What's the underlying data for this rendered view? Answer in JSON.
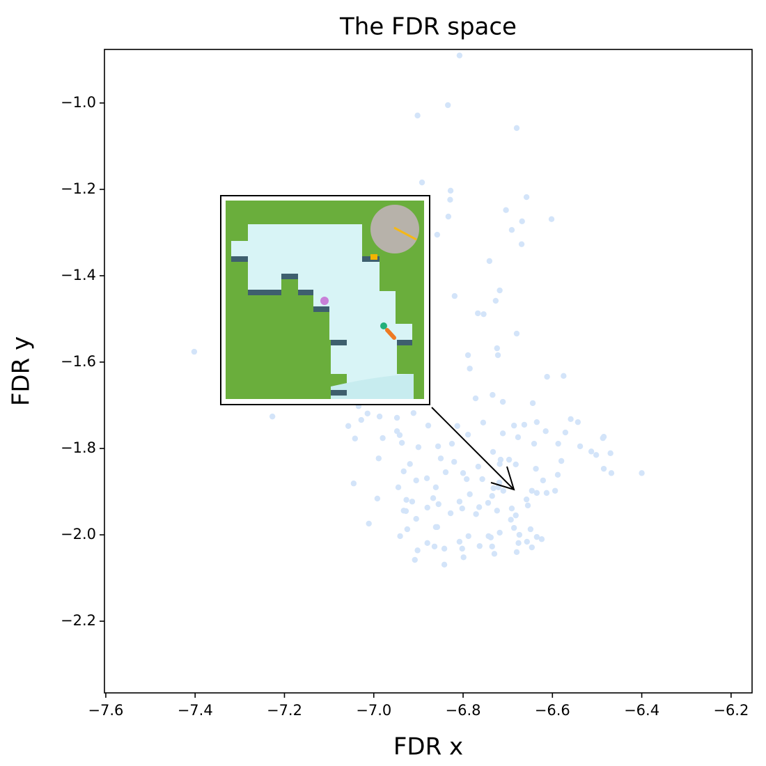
{
  "chart_data": {
    "type": "scatter",
    "title": "The FDR space",
    "xlabel": "FDR x",
    "ylabel": "FDR y",
    "color": "#d3e4f9",
    "xlim": [
      -7.603,
      -6.153
    ],
    "ylim": [
      -2.366,
      -0.876
    ],
    "xticks": [
      {
        "value": -7.6,
        "label": "−7.6"
      },
      {
        "value": -7.4,
        "label": "−7.4"
      },
      {
        "value": -7.2,
        "label": "−7.2"
      },
      {
        "value": -7.0,
        "label": "−7.0"
      },
      {
        "value": -6.8,
        "label": "−6.8"
      },
      {
        "value": -6.6,
        "label": "−6.6"
      },
      {
        "value": -6.4,
        "label": "−6.4"
      },
      {
        "value": -6.2,
        "label": "−6.2"
      }
    ],
    "yticks": [
      {
        "value": -2.2,
        "label": "−2.2"
      },
      {
        "value": -2.0,
        "label": "−2.0"
      },
      {
        "value": -1.8,
        "label": "−1.8"
      },
      {
        "value": -1.6,
        "label": "−1.6"
      },
      {
        "value": -1.4,
        "label": "−1.4"
      },
      {
        "value": -1.2,
        "label": "−1.2"
      },
      {
        "value": -1.0,
        "label": "−1.0"
      }
    ],
    "x": [
      -6.808,
      -6.834,
      -6.902,
      -6.68,
      -6.892,
      -6.828,
      -6.829,
      -6.658,
      -6.704,
      -6.602,
      -6.668,
      -6.833,
      -6.691,
      -6.858,
      -6.669,
      -6.741,
      -6.718,
      -6.727,
      -6.819,
      -6.767,
      -6.754,
      -6.68,
      -6.724,
      -6.722,
      -6.789,
      -6.785,
      -6.612,
      -6.575,
      -7.402,
      -7.227,
      -7.034,
      -6.772,
      -6.734,
      -6.644,
      -6.711,
      -6.842,
      -7.057,
      -7.028,
      -7.042,
      -7.014,
      -6.98,
      -6.948,
      -6.937,
      -6.911,
      -6.948,
      -6.9,
      -6.856,
      -6.878,
      -6.85,
      -6.825,
      -6.813,
      -6.789,
      -6.755,
      -6.733,
      -6.711,
      -6.716,
      -6.686,
      -6.677,
      -6.663,
      -6.635,
      -6.641,
      -6.615,
      -6.587,
      -6.571,
      -6.559,
      -6.543,
      -6.538,
      -6.513,
      -6.502,
      -6.487,
      -6.485,
      -6.47,
      -6.468,
      -6.4,
      -6.485,
      -6.58,
      -6.588,
      -6.621,
      -6.637,
      -6.682,
      -6.697,
      -6.718,
      -6.719,
      -6.732,
      -6.757,
      -6.766,
      -6.8,
      -6.792,
      -6.82,
      -6.839,
      -6.861,
      -6.881,
      -6.905,
      -6.933,
      -6.919,
      -6.989,
      -6.927,
      -6.928,
      -6.914,
      -6.905,
      -6.933,
      -6.925,
      -6.88,
      -6.867,
      -6.855,
      -6.858,
      -6.828,
      -6.808,
      -6.802,
      -6.785,
      -6.771,
      -6.764,
      -6.744,
      -6.735,
      -6.721,
      -6.71,
      -6.724,
      -6.691,
      -6.693,
      -6.682,
      -6.655,
      -6.646,
      -6.635,
      -6.613,
      -6.594,
      -6.658,
      -6.686,
      -6.674,
      -6.649,
      -6.635,
      -6.624,
      -6.657,
      -6.646,
      -6.676,
      -6.68,
      -6.718,
      -6.738,
      -6.743,
      -6.735,
      -6.73,
      -6.763,
      -6.788,
      -6.808,
      -6.802,
      -6.799,
      -6.842,
      -6.864,
      -6.861,
      -6.88,
      -6.941,
      -6.902,
      -6.908,
      -7.011,
      -6.992,
      -6.945,
      -6.942,
      -6.987,
      -7.045
    ],
    "values": [
      -0.89,
      -1.005,
      -1.029,
      -1.058,
      -1.184,
      -1.203,
      -1.224,
      -1.218,
      -1.248,
      -1.269,
      -1.274,
      -1.263,
      -1.294,
      -1.305,
      -1.327,
      -1.366,
      -1.434,
      -1.458,
      -1.447,
      -1.487,
      -1.489,
      -1.534,
      -1.568,
      -1.584,
      -1.584,
      -1.615,
      -1.634,
      -1.632,
      -1.576,
      -1.726,
      -1.702,
      -1.684,
      -1.676,
      -1.695,
      -1.692,
      -2.069,
      -1.748,
      -1.734,
      -1.777,
      -1.719,
      -1.776,
      -1.76,
      -1.787,
      -1.718,
      -1.729,
      -1.797,
      -1.795,
      -1.747,
      -1.823,
      -1.789,
      -1.748,
      -1.768,
      -1.74,
      -1.808,
      -1.765,
      -1.826,
      -1.747,
      -1.774,
      -1.745,
      -1.739,
      -1.789,
      -1.76,
      -1.789,
      -1.763,
      -1.732,
      -1.739,
      -1.795,
      -1.807,
      -1.815,
      -1.776,
      -1.847,
      -1.811,
      -1.857,
      -1.857,
      -1.773,
      -1.829,
      -1.861,
      -1.874,
      -1.847,
      -1.837,
      -1.826,
      -1.836,
      -1.879,
      -1.892,
      -1.871,
      -1.842,
      -1.857,
      -1.871,
      -1.831,
      -1.855,
      -1.89,
      -1.869,
      -1.874,
      -1.853,
      -1.836,
      -1.823,
      -1.919,
      -1.945,
      -1.923,
      -1.963,
      -1.944,
      -1.987,
      -1.937,
      -1.915,
      -1.929,
      -1.982,
      -1.95,
      -1.923,
      -1.939,
      -1.906,
      -1.952,
      -1.936,
      -1.926,
      -1.91,
      -1.89,
      -1.898,
      -1.944,
      -1.939,
      -1.965,
      -1.955,
      -1.932,
      -1.898,
      -1.903,
      -1.903,
      -1.898,
      -1.918,
      -1.984,
      -2.0,
      -1.987,
      -2.005,
      -2.01,
      -2.016,
      -2.029,
      -2.019,
      -2.04,
      -1.995,
      -2.006,
      -2.003,
      -2.027,
      -2.044,
      -2.026,
      -2.003,
      -2.016,
      -2.032,
      -2.052,
      -2.032,
      -2.027,
      -1.982,
      -2.019,
      -2.003,
      -2.036,
      -2.058,
      -1.974,
      -1.916,
      -1.89,
      -1.769,
      -1.726,
      -1.881
    ]
  }
}
